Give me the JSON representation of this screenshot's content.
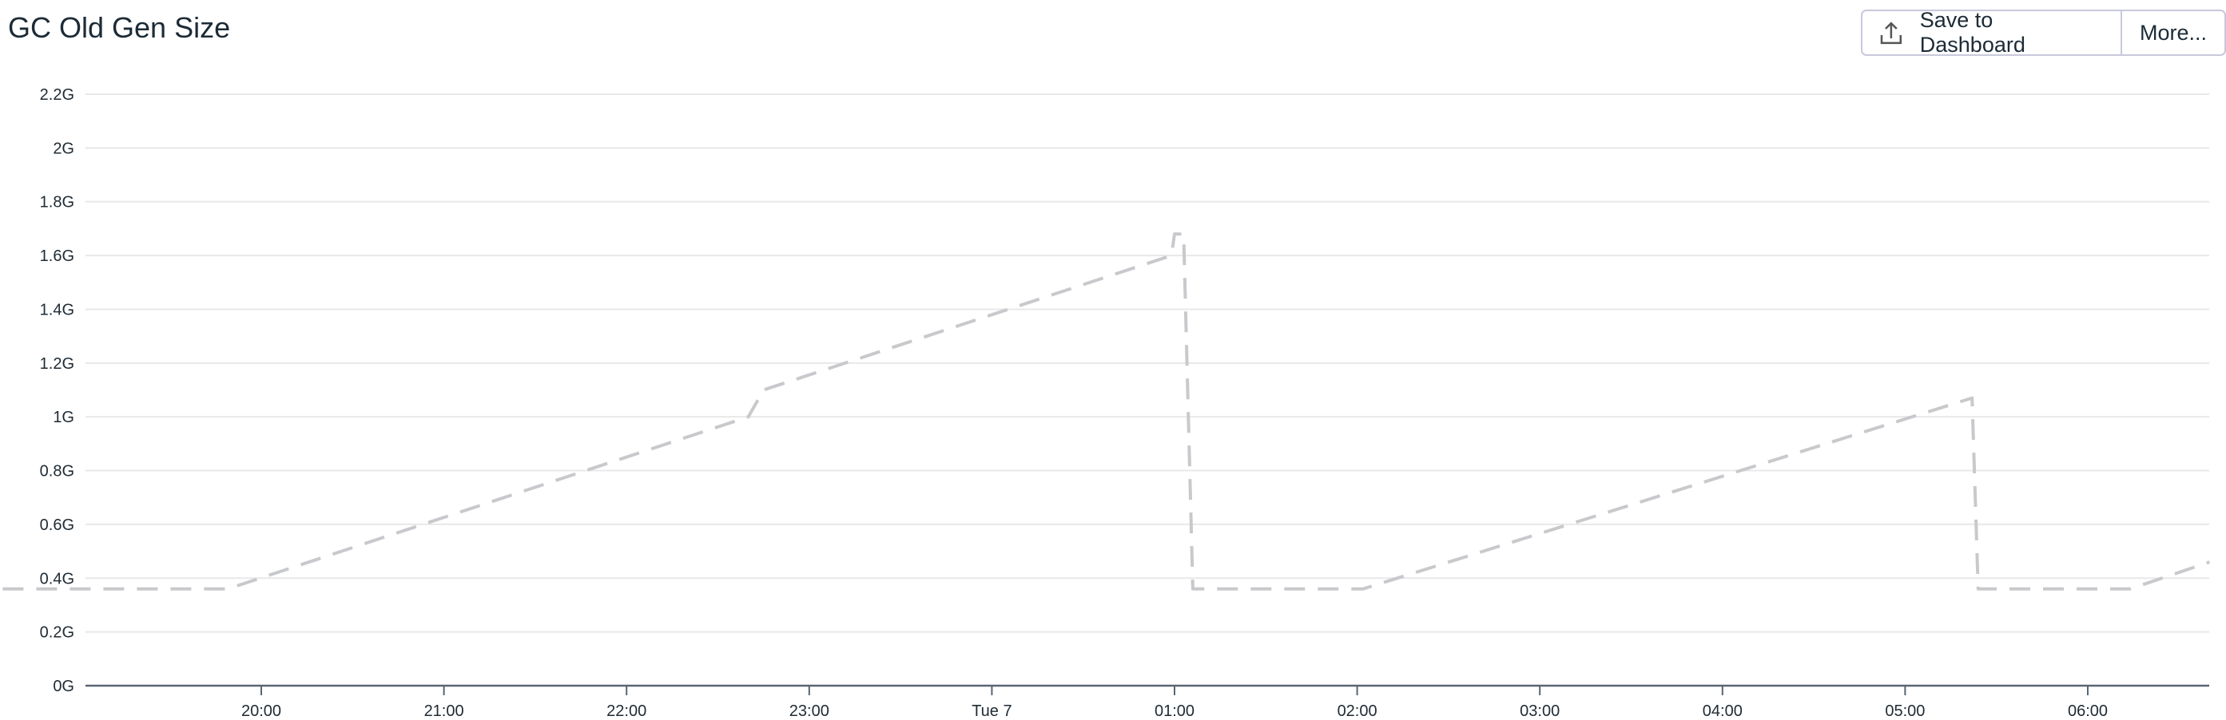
{
  "header": {
    "title": "GC Old Gen Size",
    "save_label": "Save to Dashboard",
    "save_icon": "upload-icon",
    "more_label": "More..."
  },
  "chart_data": {
    "type": "line",
    "title": "GC Old Gen Size",
    "xlabel": "",
    "ylabel": "",
    "y_unit": "G",
    "ylim": [
      0,
      2.2
    ],
    "yticks": [
      "0G",
      "0.2G",
      "0.4G",
      "0.6G",
      "0.8G",
      "1G",
      "1.2G",
      "1.4G",
      "1.6G",
      "1.8G",
      "2G",
      "2.2G"
    ],
    "xlim": [
      "Mon 18:02",
      "Tue 06:40"
    ],
    "xticks": [
      {
        "t": "Mon 20:00",
        "label": "20:00"
      },
      {
        "t": "Mon 21:00",
        "label": "21:00"
      },
      {
        "t": "Mon 22:00",
        "label": "22:00"
      },
      {
        "t": "Mon 23:00",
        "label": "23:00"
      },
      {
        "t": "Tue 00:00",
        "label": "Tue 7"
      },
      {
        "t": "Tue 01:00",
        "label": "01:00"
      },
      {
        "t": "Tue 02:00",
        "label": "02:00"
      },
      {
        "t": "Tue 03:00",
        "label": "03:00"
      },
      {
        "t": "Tue 04:00",
        "label": "04:00"
      },
      {
        "t": "Tue 05:00",
        "label": "05:00"
      },
      {
        "t": "Tue 06:00",
        "label": "06:00"
      }
    ],
    "grid": true,
    "line_color": "#c8c9cc",
    "line_style": "dashed",
    "series": [
      {
        "points": [
          [
            "Mon 18:02",
            0.36
          ],
          [
            "Mon 19:49",
            0.36
          ],
          [
            "Mon 22:40",
            1.0
          ],
          [
            "Mon 22:45",
            1.1
          ],
          [
            "Tue 00:59",
            1.6
          ],
          [
            "Tue 01:00",
            1.68
          ],
          [
            "Tue 01:03",
            1.68
          ],
          [
            "Tue 01:06",
            0.36
          ],
          [
            "Tue 02:02",
            0.36
          ],
          [
            "Tue 05:22",
            1.07
          ],
          [
            "Tue 05:24",
            0.36
          ],
          [
            "Tue 06:14",
            0.36
          ],
          [
            "Tue 06:40",
            0.46
          ]
        ]
      }
    ]
  }
}
